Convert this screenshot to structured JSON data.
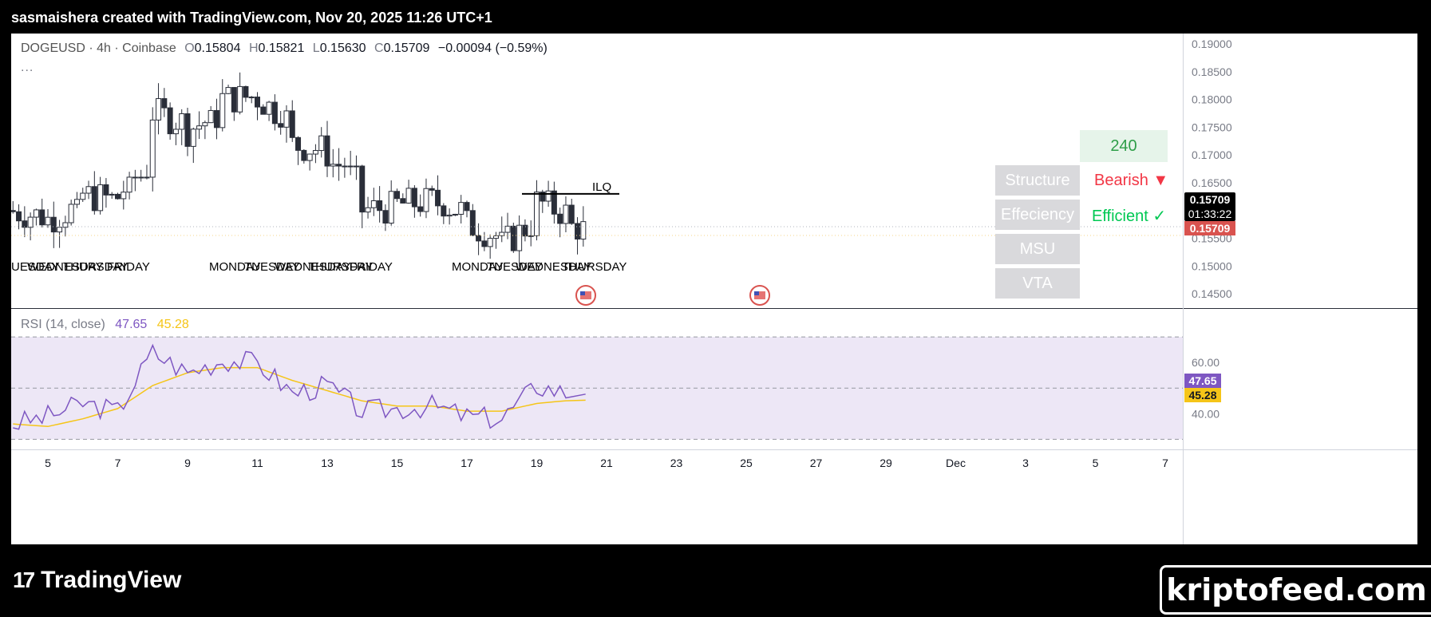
{
  "header": {
    "title": "sasmaishera created with TradingView.com, Nov 20, 2025 11:26 UTC+1"
  },
  "legend": {
    "symbol": "DOGEUSD · 4h · Coinbase",
    "o_label": "O",
    "o": "0.15804",
    "h_label": "H",
    "h": "0.15821",
    "l_label": "L",
    "l": "0.15630",
    "c_label": "C",
    "c": "0.15709",
    "change": "−0.00094 (−0.59%)",
    "more": "..."
  },
  "rsi_legend": {
    "title": "RSI (14, close)",
    "rsi": "47.65",
    "ma": "45.28"
  },
  "price_axis": {
    "ticks": [
      "0.19000",
      "0.18500",
      "0.18000",
      "0.17500",
      "0.17000",
      "0.16500",
      "0.16000",
      "0.15500",
      "0.15000",
      "0.14500"
    ],
    "last_price": "0.15709",
    "countdown": "01:33:22",
    "price_tag2": "0.15709"
  },
  "rsi_axis": {
    "ticks": [
      "60.00",
      "40.00"
    ],
    "rsi_tag": "47.65",
    "ma_tag": "45.28"
  },
  "time_axis": {
    "ticks": [
      "5",
      "7",
      "9",
      "11",
      "13",
      "15",
      "17",
      "19",
      "21",
      "23",
      "25",
      "27",
      "29",
      "Dec",
      "3",
      "5",
      "7"
    ]
  },
  "annotation": {
    "ilq": "ILQ"
  },
  "day_labels": [
    "UESDAY",
    "WEDNESDAY",
    "THURSDAY",
    "FRIDAY",
    "MONDAY",
    "TUESDAY",
    "WEDNESDAY",
    "THURSDAY",
    "FRIDAY",
    "MONDAY",
    "TUESDAY",
    "WEDNESDAY",
    "THURSDAY"
  ],
  "panel": {
    "timeframe": "240",
    "rows": [
      {
        "label": "Structure",
        "value": "Bearish ▼",
        "color": "#f23645"
      },
      {
        "label": "Effeciency",
        "value": "Efficient ✓",
        "color": "#00c853"
      },
      {
        "label": "MSU",
        "value": ""
      },
      {
        "label": "VTA",
        "value": ""
      }
    ]
  },
  "branding": {
    "logo_text": "TradingView",
    "watermark": "kriptofeed.com"
  },
  "colors": {
    "up": "#ffffff",
    "down": "#2a2e39",
    "rsi": "#7e57c2",
    "rsi_ma": "#f5c518",
    "rsi_band": "#ede7f6"
  },
  "chart_data": [
    {
      "type": "candlestick",
      "title": "DOGEUSD · 4h · Coinbase",
      "x": [
        "Nov 4",
        "Nov 5",
        "Nov 6",
        "Nov 7",
        "Nov 8",
        "Nov 9",
        "Nov 10",
        "Nov 11",
        "Nov 12",
        "Nov 13",
        "Nov 14",
        "Nov 15",
        "Nov 16",
        "Nov 17",
        "Nov 18",
        "Nov 19",
        "Nov 20"
      ],
      "close": [
        0.16,
        0.158,
        0.163,
        0.161,
        0.178,
        0.174,
        0.18,
        0.181,
        0.172,
        0.17,
        0.16,
        0.161,
        0.162,
        0.158,
        0.153,
        0.162,
        0.157
      ],
      "high": [
        0.169,
        0.162,
        0.167,
        0.166,
        0.183,
        0.178,
        0.185,
        0.186,
        0.178,
        0.178,
        0.166,
        0.164,
        0.165,
        0.165,
        0.161,
        0.165,
        0.158
      ],
      "low": [
        0.153,
        0.155,
        0.158,
        0.157,
        0.163,
        0.17,
        0.173,
        0.175,
        0.169,
        0.168,
        0.155,
        0.158,
        0.159,
        0.153,
        0.149,
        0.155,
        0.147
      ],
      "ylim": [
        0.143,
        0.191
      ],
      "last_close": 0.15709,
      "ilq_level": 0.163
    },
    {
      "type": "line",
      "title": "RSI (14, close)",
      "x": [
        "Nov 4",
        "Nov 5",
        "Nov 6",
        "Nov 7",
        "Nov 8",
        "Nov 9",
        "Nov 10",
        "Nov 11",
        "Nov 12",
        "Nov 13",
        "Nov 14",
        "Nov 15",
        "Nov 16",
        "Nov 17",
        "Nov 18",
        "Nov 19",
        "Nov 20"
      ],
      "series": [
        {
          "name": "RSI",
          "values": [
            36,
            39,
            44,
            41,
            64,
            56,
            61,
            60,
            48,
            51,
            41,
            42,
            43,
            39,
            38,
            51,
            47.65
          ]
        },
        {
          "name": "RSI MA",
          "values": [
            36,
            35,
            38,
            42,
            51,
            56,
            58,
            58,
            53,
            49,
            45,
            43,
            43,
            41,
            41,
            44,
            45.28
          ]
        }
      ],
      "bands": [
        70,
        50,
        30
      ],
      "ylim": [
        27,
        80
      ]
    }
  ]
}
